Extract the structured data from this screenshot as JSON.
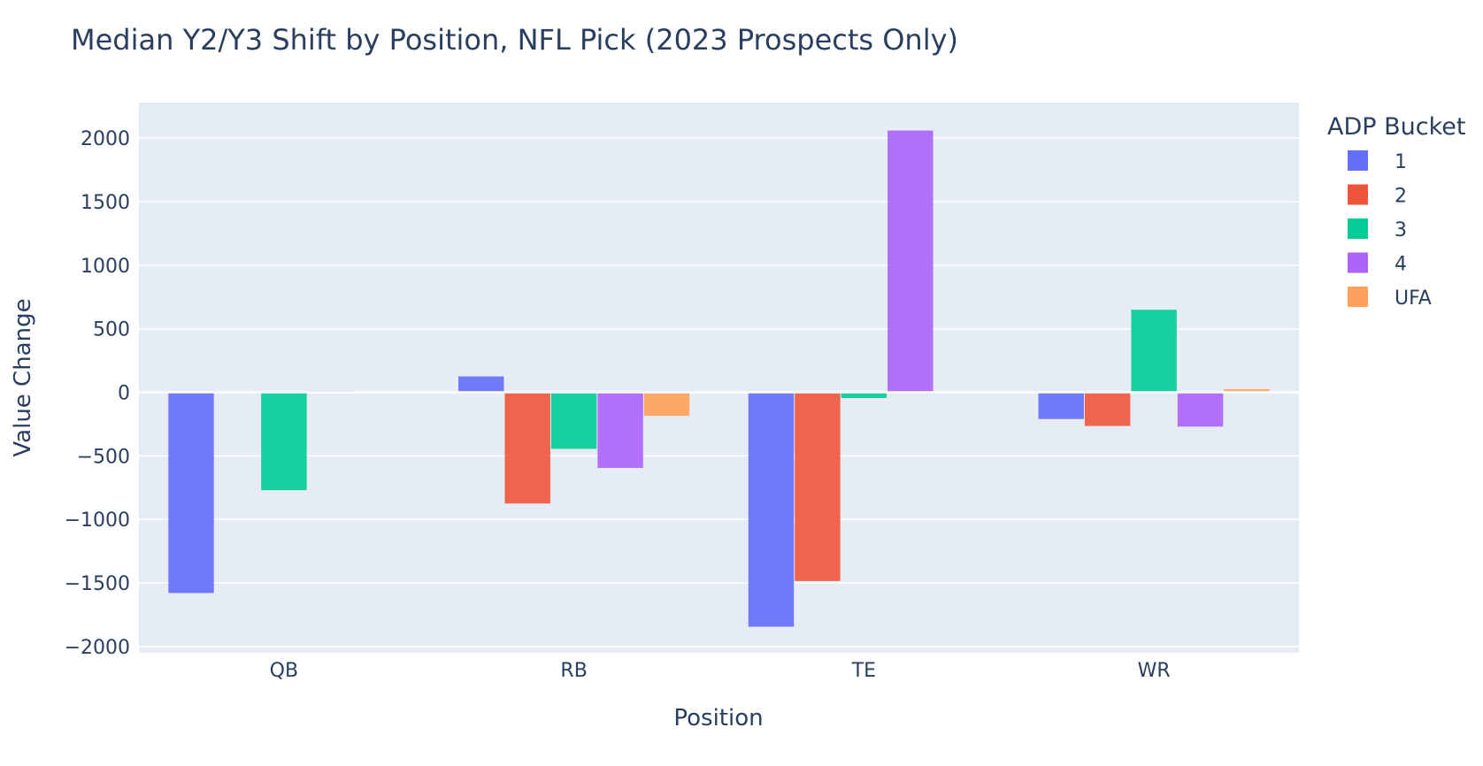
{
  "chart_data": {
    "type": "bar",
    "title": "Median Y2/Y3 Shift by Position, NFL Pick (2023 Prospects Only)",
    "xlabel": "Position",
    "ylabel": "Value Change",
    "categories": [
      "QB",
      "RB",
      "TE",
      "WR"
    ],
    "ylim": [
      -2050,
      2280
    ],
    "yticks": [
      -2000,
      -1500,
      -1000,
      -500,
      0,
      500,
      1000,
      1500,
      2000
    ],
    "ytick_labels": [
      "−2000",
      "−1500",
      "−1000",
      "−500",
      "0",
      "500",
      "1000",
      "1500",
      "2000"
    ],
    "legend_title": "ADP Bucket",
    "legend_position": "right",
    "grid": true,
    "series": [
      {
        "name": "1",
        "color": "#636efa",
        "values": [
          -1580,
          125,
          -1845,
          -210
        ]
      },
      {
        "name": "2",
        "color": "#ef553b",
        "values": [
          null,
          -875,
          -1485,
          -265
        ]
      },
      {
        "name": "3",
        "color": "#00cc96",
        "values": [
          -770,
          -445,
          -45,
          650
        ]
      },
      {
        "name": "4",
        "color": "#ab63fa",
        "values": [
          10,
          -595,
          2060,
          -270
        ]
      },
      {
        "name": "UFA",
        "color": "#ffa15a",
        "values": [
          null,
          -185,
          null,
          25
        ]
      }
    ]
  },
  "colors": {
    "plot_background": "#e5ecf6",
    "grid": "#ffffff",
    "text": "#2a3f5f"
  }
}
